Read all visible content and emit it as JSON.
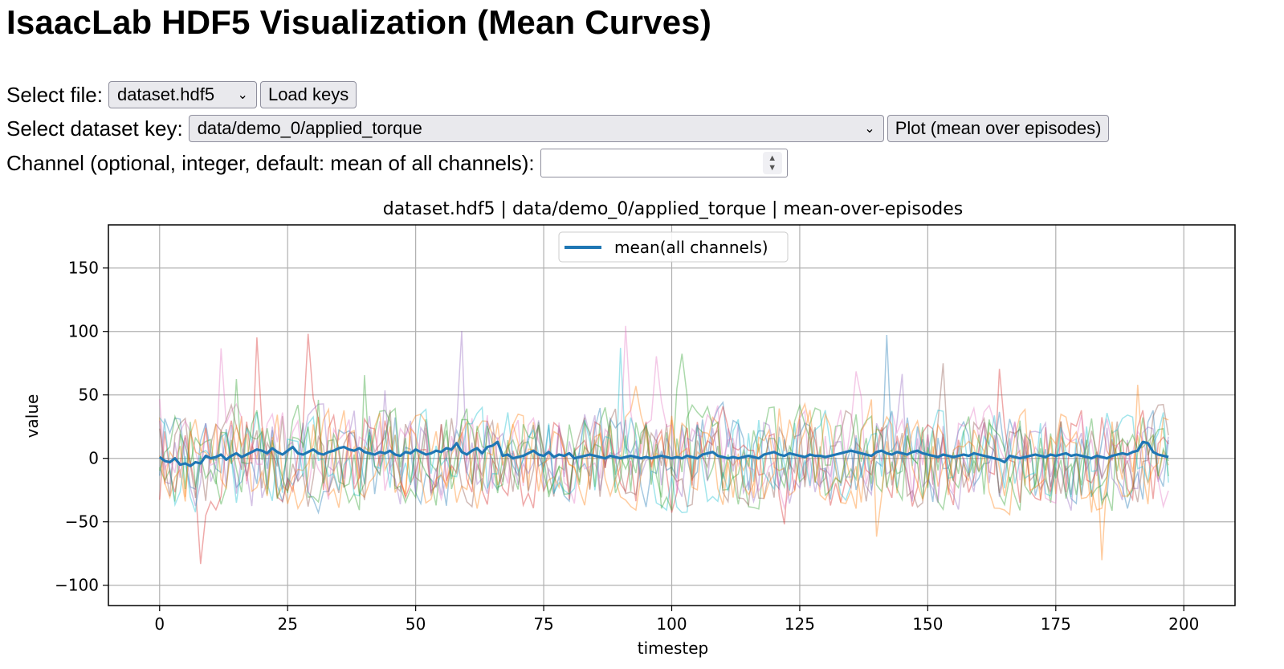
{
  "page": {
    "title": "IsaacLab HDF5 Visualization (Mean Curves)"
  },
  "controls": {
    "file_label": "Select file:",
    "file_value": "dataset.hdf5",
    "load_button": "Load keys",
    "key_label": "Select dataset key:",
    "key_value": "data/demo_0/applied_torque",
    "plot_button": "Plot (mean over episodes)",
    "channel_label": "Channel (optional, integer, default: mean of all channels):",
    "channel_value": ""
  },
  "icons": [
    "chevron-down-icon",
    "spinner-arrows-icon"
  ],
  "chart_data": {
    "type": "line",
    "title": "dataset.hdf5 | data/demo_0/applied_torque | mean-over-episodes",
    "xlabel": "timestep",
    "ylabel": "value",
    "xlim": [
      -10,
      210
    ],
    "ylim": [
      -116,
      184
    ],
    "xticks": [
      0,
      25,
      50,
      75,
      100,
      125,
      150,
      175,
      200
    ],
    "yticks": [
      -100,
      -50,
      0,
      50,
      100,
      150
    ],
    "ytick_labels": [
      "−100",
      "−50",
      "0",
      "50",
      "100",
      "150"
    ],
    "grid": true,
    "legend": {
      "placement": "top-center",
      "entries": [
        "mean(all channels)"
      ]
    },
    "background_series_colors": [
      "#1f77b4",
      "#ff7f0e",
      "#2ca02c",
      "#d62728",
      "#9467bd",
      "#8c564b",
      "#e377c2",
      "#17becf",
      "#2ca02c",
      "#ff7f0e"
    ],
    "background_series_count": 10,
    "series": [
      {
        "name": "mean(all channels)",
        "color": "#1f77b4",
        "x_start": 0,
        "x_step": 1,
        "values": [
          1,
          -2,
          -3,
          0,
          -5,
          -4,
          -6,
          -3,
          -4,
          2,
          0,
          1,
          3,
          -1,
          2,
          4,
          1,
          3,
          5,
          7,
          6,
          4,
          8,
          5,
          3,
          6,
          9,
          4,
          3,
          5,
          7,
          4,
          3,
          5,
          6,
          8,
          9,
          7,
          6,
          8,
          5,
          4,
          3,
          5,
          4,
          6,
          3,
          2,
          5,
          4,
          7,
          5,
          3,
          4,
          6,
          5,
          8,
          7,
          12,
          5,
          3,
          6,
          8,
          4,
          9,
          10,
          13,
          2,
          3,
          0,
          1,
          2,
          4,
          6,
          3,
          2,
          5,
          1,
          3,
          2,
          4,
          0,
          1,
          2,
          3,
          2,
          1,
          0,
          2,
          1,
          0,
          1,
          2,
          1,
          0,
          1,
          0,
          1,
          2,
          1,
          0,
          1,
          0,
          2,
          1,
          0,
          3,
          4,
          5,
          2,
          1,
          0,
          1,
          0,
          1,
          2,
          1,
          0,
          3,
          4,
          5,
          3,
          2,
          4,
          3,
          2,
          1,
          3,
          2,
          2,
          1,
          2,
          3,
          4,
          5,
          6,
          5,
          4,
          3,
          2,
          5,
          6,
          4,
          3,
          5,
          4,
          3,
          5,
          6,
          4,
          3,
          2,
          1,
          3,
          2,
          1,
          2,
          3,
          2,
          4,
          3,
          2,
          1,
          0,
          -1,
          -3,
          2,
          1,
          0,
          1,
          2,
          3,
          2,
          1,
          3,
          2,
          3,
          4,
          2,
          3,
          2,
          1,
          0,
          2,
          1,
          0,
          2,
          3,
          4,
          3,
          5,
          6,
          13,
          12,
          5,
          3,
          2,
          1
        ]
      }
    ]
  }
}
